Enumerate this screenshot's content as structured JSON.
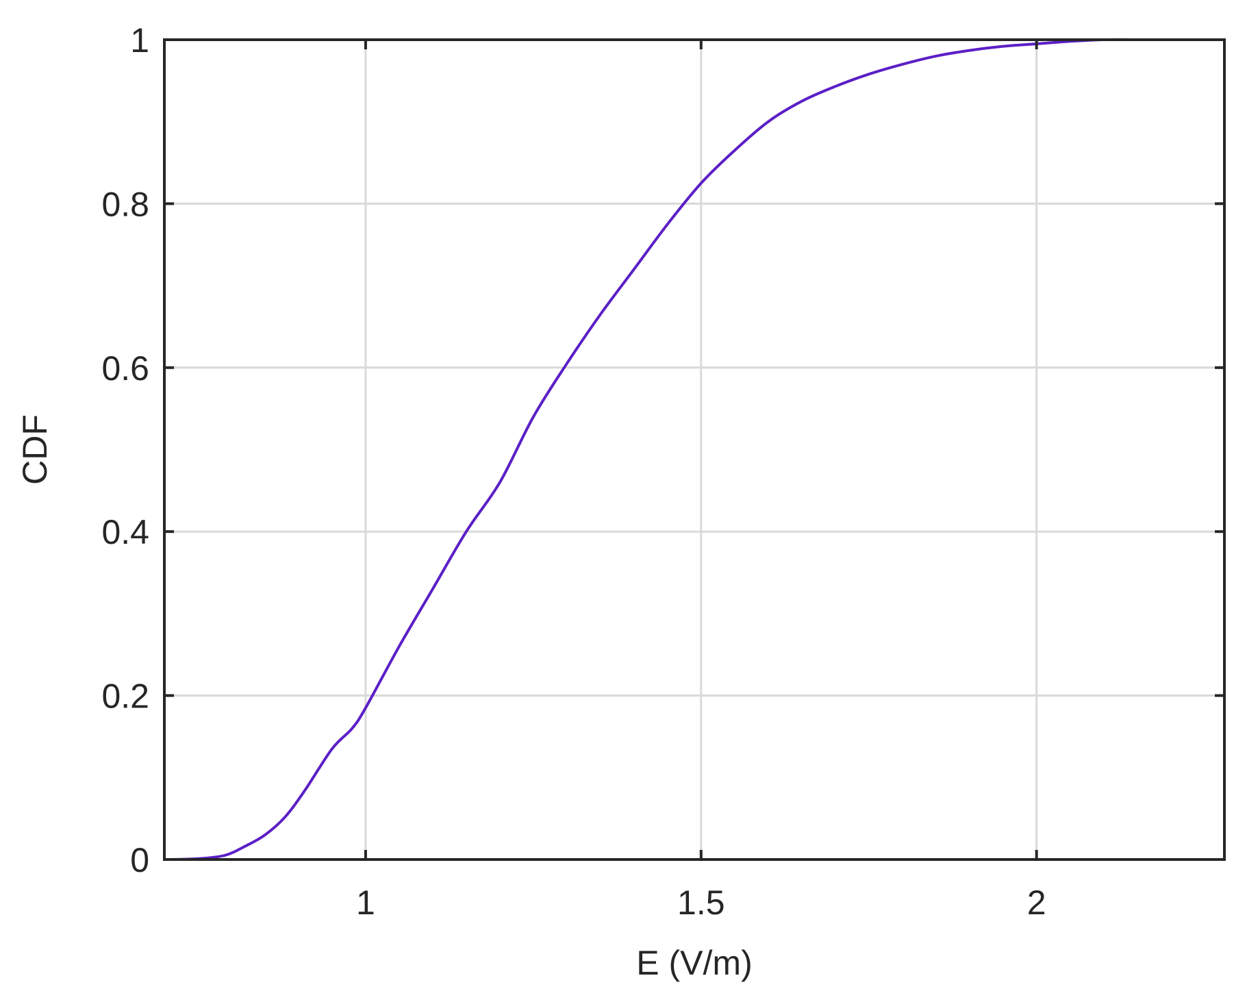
{
  "chart_data": {
    "type": "line",
    "xlabel": "E (V/m)",
    "ylabel": "CDF",
    "xlim": [
      0.7,
      2.28
    ],
    "ylim": [
      0,
      1
    ],
    "xticks": [
      1,
      1.5,
      2
    ],
    "xtick_labels": [
      "1",
      "1.5",
      "2"
    ],
    "yticks": [
      0,
      0.2,
      0.4,
      0.6,
      0.8,
      1
    ],
    "ytick_labels": [
      "0",
      "0.2",
      "0.4",
      "0.6",
      "0.8",
      "1"
    ],
    "grid": true,
    "series": [
      {
        "color": "#5b1fc6",
        "x": [
          0.71,
          0.75,
          0.79,
          0.82,
          0.85,
          0.88,
          0.91,
          0.95,
          0.98,
          1.0,
          1.05,
          1.1,
          1.15,
          1.2,
          1.25,
          1.3,
          1.35,
          1.4,
          1.45,
          1.5,
          1.55,
          1.6,
          1.65,
          1.7,
          1.75,
          1.8,
          1.85,
          1.9,
          1.95,
          2.0,
          2.05,
          2.1,
          2.15,
          2.2,
          2.28
        ],
        "y": [
          0.0,
          0.001,
          0.005,
          0.016,
          0.03,
          0.052,
          0.085,
          0.135,
          0.16,
          0.185,
          0.26,
          0.33,
          0.4,
          0.46,
          0.54,
          0.605,
          0.665,
          0.72,
          0.775,
          0.825,
          0.865,
          0.9,
          0.925,
          0.943,
          0.958,
          0.97,
          0.98,
          0.987,
          0.992,
          0.995,
          0.998,
          1.0,
          1.0,
          1.0,
          1.0
        ]
      }
    ]
  }
}
